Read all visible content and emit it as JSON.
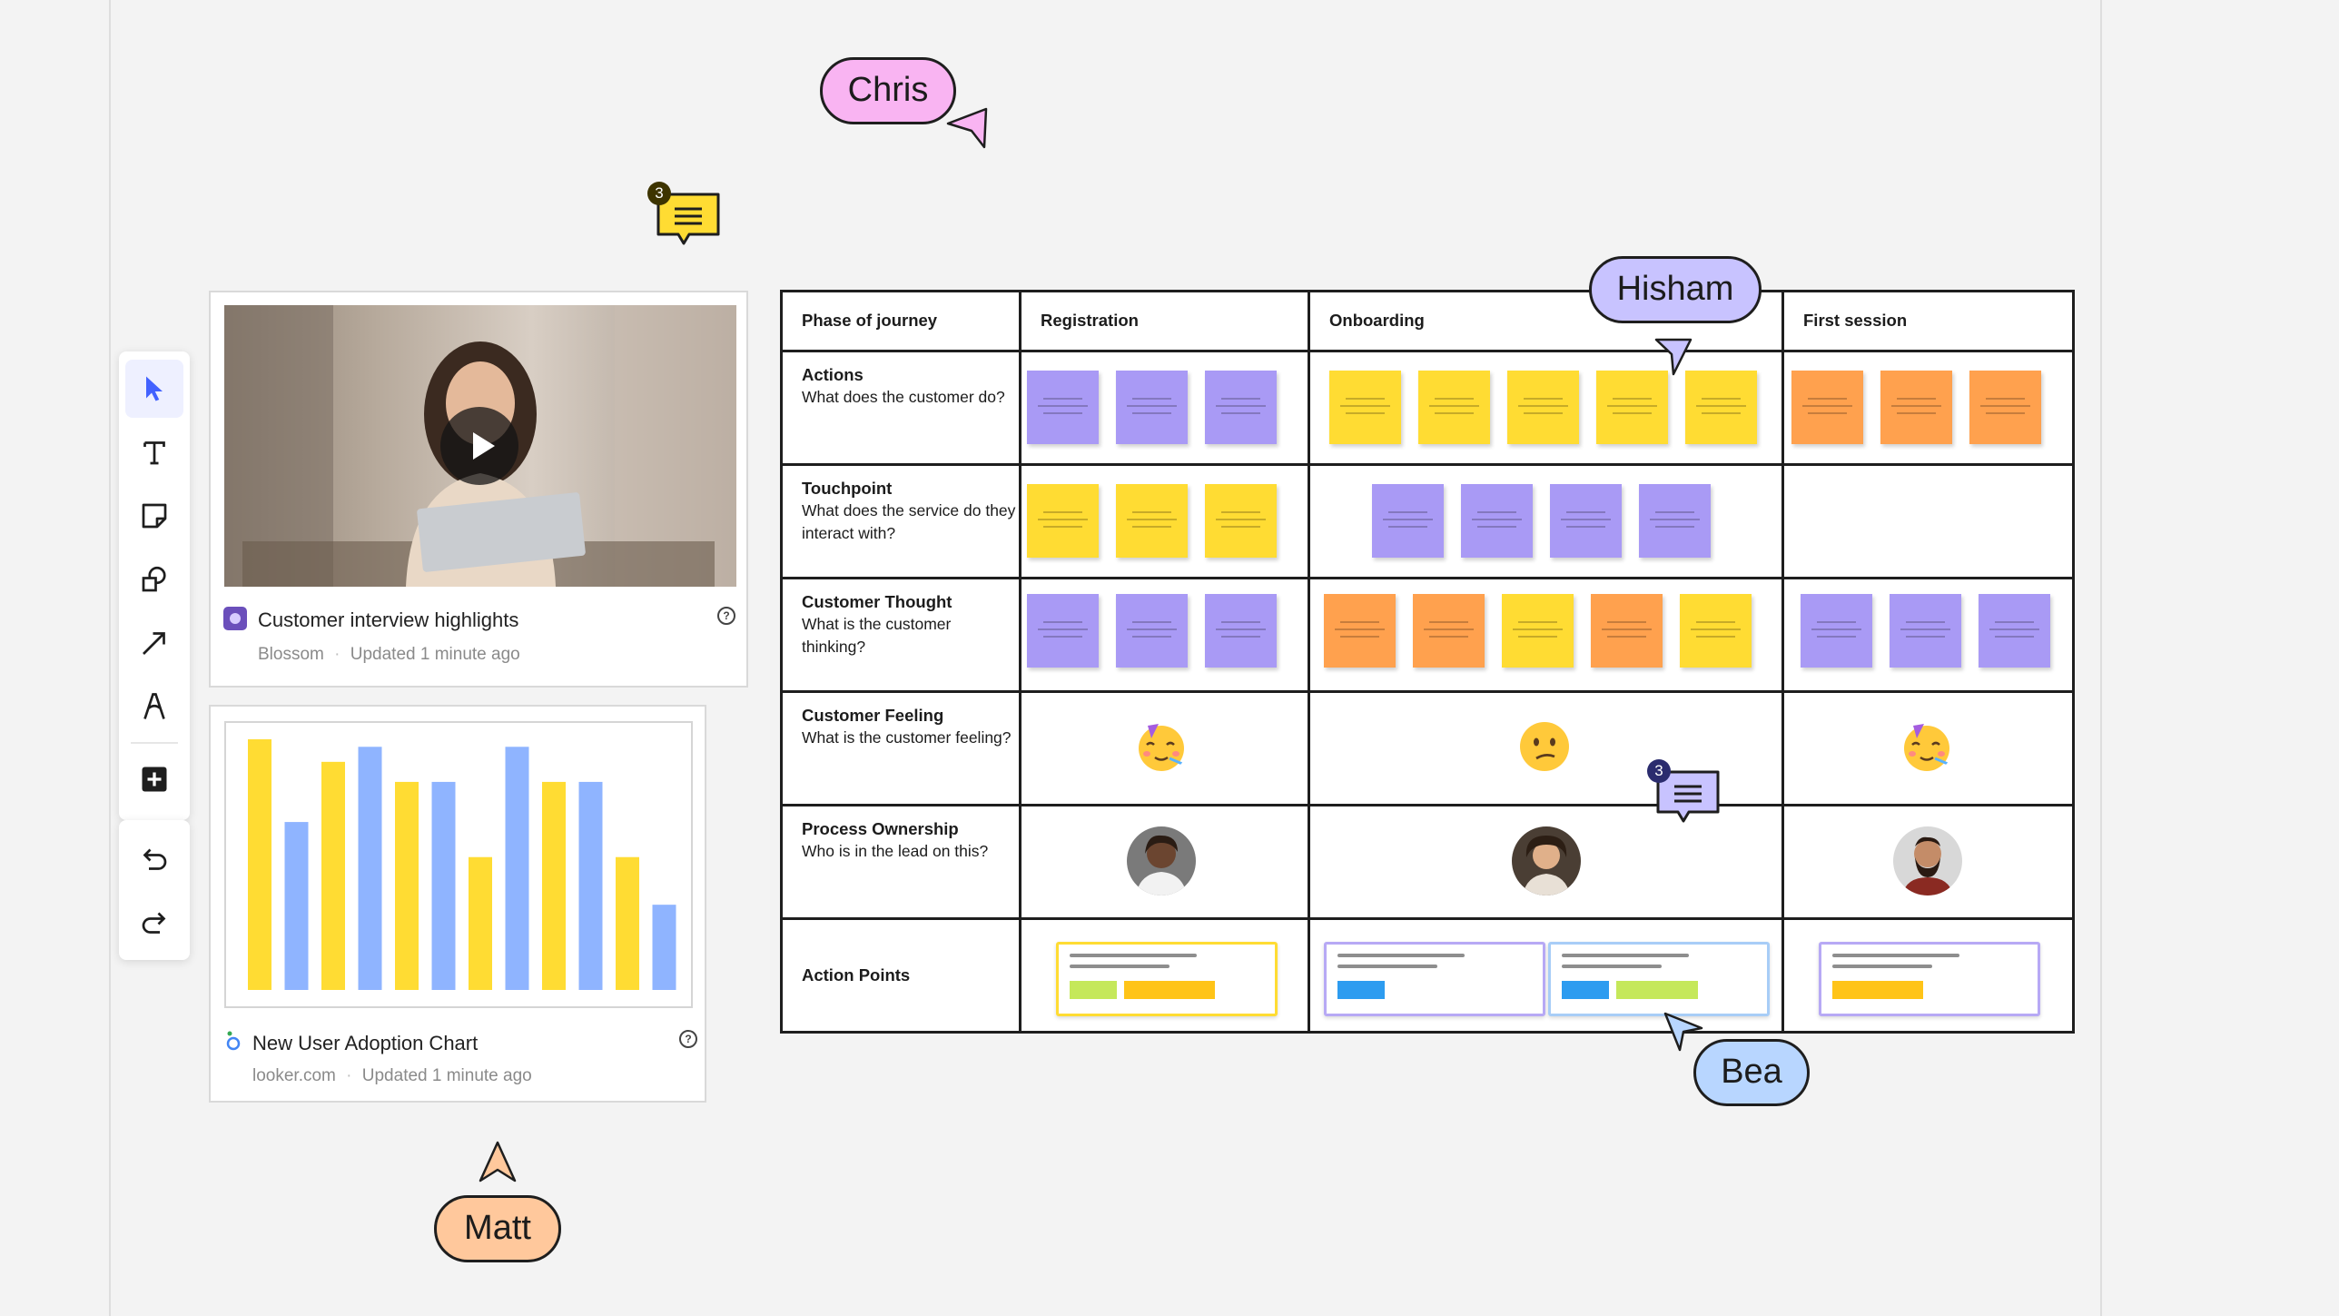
{
  "toolbar": {
    "tools": [
      "select-tool",
      "text-tool",
      "sticky-note-tool",
      "shapes-tool",
      "connector-tool",
      "pen-tool",
      "more-tools"
    ],
    "history": [
      "undo",
      "redo"
    ],
    "accent": "#4262ff"
  },
  "video_card": {
    "title": "Customer interview highlights",
    "source": "Blossom",
    "updated": "Updated 1 minute ago"
  },
  "chart_card": {
    "title": "New User Adoption Chart",
    "source": "looker.com",
    "updated": "Updated 1 minute ago"
  },
  "chart_data": {
    "type": "bar",
    "categories": [
      "",
      "",
      "",
      "",
      "",
      "",
      "",
      "",
      "",
      "",
      "",
      ""
    ],
    "values": [
      100,
      67,
      91,
      97,
      83,
      83,
      53,
      97,
      83,
      83,
      53,
      34
    ],
    "bar_colors": [
      "#ffdc33",
      "#8fb4ff",
      "#ffdc33",
      "#8fb4ff",
      "#ffdc33",
      "#8fb4ff",
      "#ffdc33",
      "#8fb4ff",
      "#ffdc33",
      "#8fb4ff",
      "#ffdc33",
      "#8fb4ff"
    ],
    "title": "",
    "xlabel": "",
    "ylabel": "",
    "ylim": [
      0,
      100
    ],
    "grid": false
  },
  "journey": {
    "phase_header": "Phase of journey",
    "phases": [
      "Registration",
      "Onboarding",
      "First session"
    ],
    "rows": [
      {
        "title": "Actions",
        "desc": "What does the customer do?"
      },
      {
        "title": "Touchpoint",
        "desc": "What does the service do they interact with?"
      },
      {
        "title": "Customer Thought",
        "desc": "What is the customer thinking?"
      },
      {
        "title": "Customer Feeling",
        "desc": "What is the customer feeling?"
      },
      {
        "title": "Process Ownership",
        "desc": "Who is in the lead on this?"
      },
      {
        "title": "Action Points",
        "desc": ""
      }
    ],
    "sticky_colors": {
      "purple": "#a99af5",
      "yellow": "#ffdc33",
      "orange": "#ffa14e"
    }
  },
  "collaborators": {
    "chris": {
      "name": "Chris",
      "color": "#f9b4f2"
    },
    "hisham": {
      "name": "Hisham",
      "color": "#c8c3ff"
    },
    "bea": {
      "name": "Bea",
      "color": "#b8d6ff"
    },
    "matt": {
      "name": "Matt",
      "color": "#ffc89c"
    }
  },
  "comments": [
    {
      "count": "3",
      "color": "#ffdc33"
    },
    {
      "count": "3",
      "color": "#c8c3ff"
    }
  ]
}
